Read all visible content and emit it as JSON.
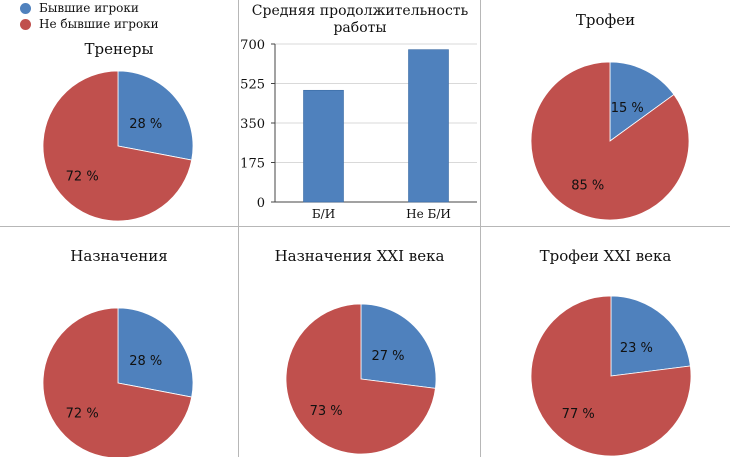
{
  "legend": {
    "items": [
      {
        "label": "Бывшие игроки",
        "color": "#4f81bd"
      },
      {
        "label": "Не бывшие игроки",
        "color": "#c0504d"
      }
    ]
  },
  "chart_data": [
    {
      "type": "pie",
      "title": "Тренеры",
      "labels": [
        "Бывшие игроки",
        "Не бывшие игроки"
      ],
      "values": [
        28,
        72
      ],
      "value_labels": [
        "28 %",
        "72 %"
      ],
      "colors": [
        "#4f81bd",
        "#c0504d"
      ]
    },
    {
      "type": "bar",
      "title": "Средняя продолжительность работы",
      "categories": [
        "Б/И",
        "Не Б/И"
      ],
      "values": [
        495,
        675
      ],
      "ylim": [
        0,
        700
      ],
      "yticks": [
        "0",
        "175",
        "350",
        "525",
        "700"
      ],
      "xlabel": "",
      "ylabel": "",
      "color": "#4f81bd"
    },
    {
      "type": "pie",
      "title": "Трофеи",
      "labels": [
        "Бывшие игроки",
        "Не бывшие игроки"
      ],
      "values": [
        15,
        85
      ],
      "value_labels": [
        "15 %",
        "85 %"
      ],
      "colors": [
        "#4f81bd",
        "#c0504d"
      ]
    },
    {
      "type": "pie",
      "title": "Назначения",
      "labels": [
        "Бывшие игроки",
        "Не бывшие игроки"
      ],
      "values": [
        28,
        72
      ],
      "value_labels": [
        "28 %",
        "72 %"
      ],
      "colors": [
        "#4f81bd",
        "#c0504d"
      ]
    },
    {
      "type": "pie",
      "title": "Назначения XXI века",
      "labels": [
        "Бывшие игроки",
        "Не бывшие игроки"
      ],
      "values": [
        27,
        73
      ],
      "value_labels": [
        "27 %",
        "73 %"
      ],
      "colors": [
        "#4f81bd",
        "#c0504d"
      ]
    },
    {
      "type": "pie",
      "title": "Трофеи XXI века",
      "labels": [
        "Бывшие игроки",
        "Не бывшие игроки"
      ],
      "values": [
        23,
        77
      ],
      "value_labels": [
        "23 %",
        "77 %"
      ],
      "colors": [
        "#4f81bd",
        "#c0504d"
      ]
    }
  ]
}
